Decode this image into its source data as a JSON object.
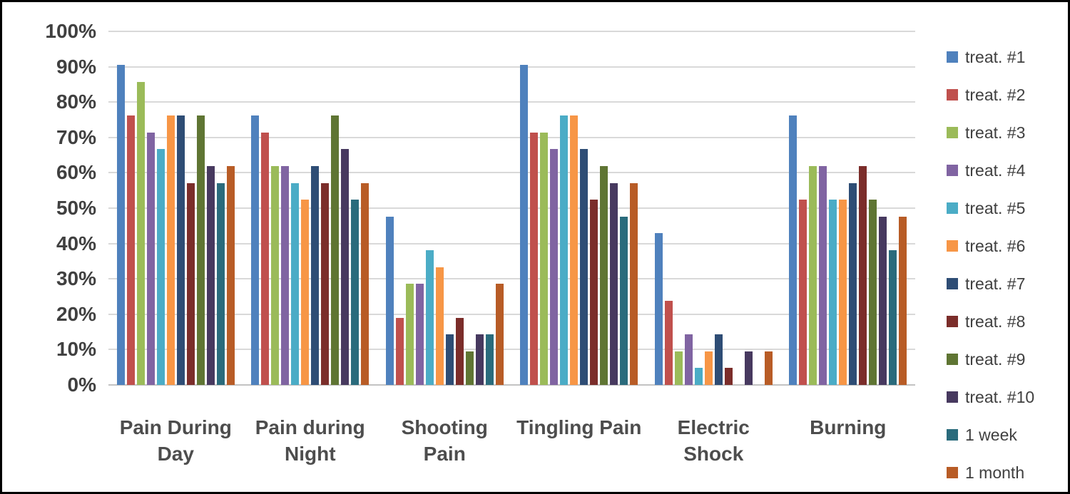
{
  "chart_data": {
    "type": "bar",
    "title": "",
    "xlabel": "",
    "ylabel": "",
    "grid": true,
    "legend_position": "right",
    "ylim": [
      0,
      100
    ],
    "yticks": [
      "100%",
      "90%",
      "80%",
      "70%",
      "60%",
      "50%",
      "40%",
      "30%",
      "20%",
      "10%",
      "0%"
    ],
    "categories": [
      "Pain During Day",
      "Pain during Night",
      "Shooting Pain",
      "Tingling Pain",
      "Electric Shock",
      "Burning"
    ],
    "category_label_lines": [
      [
        "Pain During",
        "Day"
      ],
      [
        "Pain during",
        "Night"
      ],
      [
        "Shooting",
        "Pain"
      ],
      [
        "Tingling Pain"
      ],
      [
        "Electric",
        "Shock"
      ],
      [
        "Burning"
      ]
    ],
    "series": [
      {
        "name": "treat. #1",
        "color": "#4F81BD",
        "values": [
          90.5,
          76.2,
          47.6,
          90.5,
          42.9,
          76.2
        ]
      },
      {
        "name": "treat. #2",
        "color": "#C0504D",
        "values": [
          76.2,
          71.4,
          19.0,
          71.4,
          23.8,
          52.4
        ]
      },
      {
        "name": "treat. #3",
        "color": "#9BBB59",
        "values": [
          85.7,
          61.9,
          28.6,
          71.4,
          9.5,
          61.9
        ]
      },
      {
        "name": "treat. #4",
        "color": "#8064A2",
        "values": [
          71.4,
          61.9,
          28.6,
          66.7,
          14.3,
          61.9
        ]
      },
      {
        "name": "treat. #5",
        "color": "#4BACC6",
        "values": [
          66.7,
          57.1,
          38.1,
          76.2,
          4.8,
          52.4
        ]
      },
      {
        "name": "treat. #6",
        "color": "#F79646",
        "values": [
          76.2,
          52.4,
          33.3,
          76.2,
          9.5,
          52.4
        ]
      },
      {
        "name": "treat. #7",
        "color": "#2E4D75",
        "values": [
          76.2,
          61.9,
          14.3,
          66.7,
          14.3,
          57.1
        ]
      },
      {
        "name": "treat. #8",
        "color": "#7B2D2A",
        "values": [
          57.1,
          57.1,
          19.0,
          52.4,
          4.8,
          61.9
        ]
      },
      {
        "name": "treat. #9",
        "color": "#5F7533",
        "values": [
          76.2,
          76.2,
          9.5,
          61.9,
          0,
          52.4
        ]
      },
      {
        "name": "treat. #10",
        "color": "#47395F",
        "values": [
          61.9,
          66.7,
          14.3,
          57.1,
          9.5,
          47.6
        ]
      },
      {
        "name": "1 week",
        "color": "#2A6B7C",
        "values": [
          57.1,
          52.4,
          14.3,
          47.6,
          0,
          38.1
        ]
      },
      {
        "name": "1 month",
        "color": "#B85C26",
        "values": [
          61.9,
          57.1,
          28.6,
          57.1,
          9.5,
          47.6
        ]
      }
    ]
  },
  "colors": {
    "frame_border": "#000000",
    "background": "#FFFFFF",
    "gridline": "#D9D9D9",
    "axis_line": "#C3C3C3",
    "tick_text": "#404040",
    "category_text": "#4D4D4D",
    "legend_text": "#404040"
  }
}
